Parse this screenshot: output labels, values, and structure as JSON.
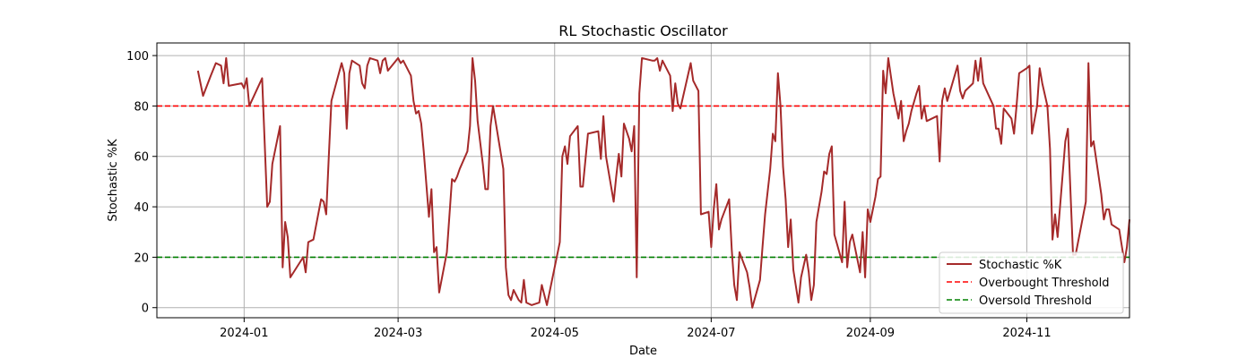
{
  "chart_data": {
    "type": "line",
    "title": "RL Stochastic Oscillator",
    "xlabel": "Date",
    "ylabel": "Stochastic %K",
    "xlim": [
      "2023-11-28",
      "2024-12-11"
    ],
    "ylim": [
      -4,
      105
    ],
    "x_ticks": [
      "2024-01-01",
      "2024-03-01",
      "2024-05-01",
      "2024-07-01",
      "2024-09-01",
      "2024-11-01"
    ],
    "x_tick_labels": [
      "2024-01",
      "2024-03",
      "2024-05",
      "2024-07",
      "2024-09",
      "2024-11"
    ],
    "y_ticks": [
      0,
      20,
      40,
      60,
      80,
      100
    ],
    "grid": true,
    "legend_position": "lower right",
    "series": [
      {
        "name": "Stochastic %K",
        "color": "#a52a2a",
        "points": [
          [
            "2023-12-14",
            94
          ],
          [
            "2023-12-16",
            84
          ],
          [
            "2023-12-19",
            92
          ],
          [
            "2023-12-21",
            97
          ],
          [
            "2023-12-23",
            96
          ],
          [
            "2023-12-24",
            89
          ],
          [
            "2023-12-25",
            99
          ],
          [
            "2023-12-26",
            88
          ],
          [
            "2023-12-31",
            89
          ],
          [
            "2024-01-01",
            87
          ],
          [
            "2024-01-02",
            91
          ],
          [
            "2024-01-03",
            80
          ],
          [
            "2024-01-08",
            91
          ],
          [
            "2024-01-10",
            40
          ],
          [
            "2024-01-11",
            42
          ],
          [
            "2024-01-12",
            57
          ],
          [
            "2024-01-15",
            72
          ],
          [
            "2024-01-16",
            16
          ],
          [
            "2024-01-17",
            34
          ],
          [
            "2024-01-18",
            28
          ],
          [
            "2024-01-19",
            12
          ],
          [
            "2024-01-24",
            20
          ],
          [
            "2024-01-25",
            14
          ],
          [
            "2024-01-26",
            26
          ],
          [
            "2024-01-28",
            27
          ],
          [
            "2024-01-31",
            43
          ],
          [
            "2024-02-01",
            42
          ],
          [
            "2024-02-02",
            37
          ],
          [
            "2024-02-03",
            60
          ],
          [
            "2024-02-04",
            82
          ],
          [
            "2024-02-08",
            97
          ],
          [
            "2024-02-09",
            93
          ],
          [
            "2024-02-10",
            71
          ],
          [
            "2024-02-11",
            93
          ],
          [
            "2024-02-12",
            98
          ],
          [
            "2024-02-15",
            96
          ],
          [
            "2024-02-16",
            89
          ],
          [
            "2024-02-17",
            87
          ],
          [
            "2024-02-18",
            96
          ],
          [
            "2024-02-19",
            99
          ],
          [
            "2024-02-22",
            98
          ],
          [
            "2024-02-23",
            93
          ],
          [
            "2024-02-24",
            98
          ],
          [
            "2024-02-25",
            99
          ],
          [
            "2024-02-26",
            94
          ],
          [
            "2024-03-01",
            99
          ],
          [
            "2024-03-02",
            97
          ],
          [
            "2024-03-03",
            98
          ],
          [
            "2024-03-06",
            92
          ],
          [
            "2024-03-07",
            82
          ],
          [
            "2024-03-08",
            77
          ],
          [
            "2024-03-09",
            78
          ],
          [
            "2024-03-10",
            73
          ],
          [
            "2024-03-11",
            62
          ],
          [
            "2024-03-13",
            36
          ],
          [
            "2024-03-14",
            47
          ],
          [
            "2024-03-15",
            22
          ],
          [
            "2024-03-16",
            24
          ],
          [
            "2024-03-17",
            6
          ],
          [
            "2024-03-20",
            22
          ],
          [
            "2024-03-22",
            51
          ],
          [
            "2024-03-23",
            50
          ],
          [
            "2024-03-24",
            52
          ],
          [
            "2024-03-25",
            55
          ],
          [
            "2024-03-28",
            62
          ],
          [
            "2024-03-29",
            72
          ],
          [
            "2024-03-30",
            99
          ],
          [
            "2024-03-31",
            90
          ],
          [
            "2024-04-01",
            74
          ],
          [
            "2024-04-03",
            57
          ],
          [
            "2024-04-04",
            47
          ],
          [
            "2024-04-05",
            47
          ],
          [
            "2024-04-06",
            72
          ],
          [
            "2024-04-07",
            80
          ],
          [
            "2024-04-11",
            55
          ],
          [
            "2024-04-12",
            16
          ],
          [
            "2024-04-13",
            5
          ],
          [
            "2024-04-14",
            3
          ],
          [
            "2024-04-15",
            7
          ],
          [
            "2024-04-17",
            3
          ],
          [
            "2024-04-18",
            2
          ],
          [
            "2024-04-19",
            11
          ],
          [
            "2024-04-20",
            2
          ],
          [
            "2024-04-22",
            1
          ],
          [
            "2024-04-25",
            2
          ],
          [
            "2024-04-26",
            9
          ],
          [
            "2024-04-28",
            1
          ],
          [
            "2024-05-03",
            26
          ],
          [
            "2024-05-04",
            60
          ],
          [
            "2024-05-05",
            64
          ],
          [
            "2024-05-06",
            57
          ],
          [
            "2024-05-07",
            68
          ],
          [
            "2024-05-10",
            72
          ],
          [
            "2024-05-11",
            48
          ],
          [
            "2024-05-12",
            48
          ],
          [
            "2024-05-14",
            69
          ],
          [
            "2024-05-18",
            70
          ],
          [
            "2024-05-19",
            59
          ],
          [
            "2024-05-20",
            76
          ],
          [
            "2024-05-21",
            60
          ],
          [
            "2024-05-24",
            42
          ],
          [
            "2024-05-25",
            52
          ],
          [
            "2024-05-26",
            61
          ],
          [
            "2024-05-27",
            52
          ],
          [
            "2024-05-28",
            73
          ],
          [
            "2024-05-30",
            67
          ],
          [
            "2024-05-31",
            62
          ],
          [
            "2024-06-01",
            72
          ],
          [
            "2024-06-02",
            12
          ],
          [
            "2024-06-03",
            85
          ],
          [
            "2024-06-04",
            99
          ],
          [
            "2024-06-08",
            98
          ],
          [
            "2024-06-09",
            98
          ],
          [
            "2024-06-10",
            99
          ],
          [
            "2024-06-11",
            94
          ],
          [
            "2024-06-12",
            98
          ],
          [
            "2024-06-15",
            92
          ],
          [
            "2024-06-16",
            78
          ],
          [
            "2024-06-17",
            89
          ],
          [
            "2024-06-18",
            81
          ],
          [
            "2024-06-19",
            79
          ],
          [
            "2024-06-23",
            97
          ],
          [
            "2024-06-24",
            90
          ],
          [
            "2024-06-26",
            86
          ],
          [
            "2024-06-27",
            37
          ],
          [
            "2024-06-30",
            38
          ],
          [
            "2024-07-01",
            24
          ],
          [
            "2024-07-02",
            39
          ],
          [
            "2024-07-03",
            49
          ],
          [
            "2024-07-04",
            31
          ],
          [
            "2024-07-05",
            35
          ],
          [
            "2024-07-08",
            43
          ],
          [
            "2024-07-09",
            23
          ],
          [
            "2024-07-10",
            9
          ],
          [
            "2024-07-11",
            3
          ],
          [
            "2024-07-12",
            22
          ],
          [
            "2024-07-15",
            14
          ],
          [
            "2024-07-16",
            8
          ],
          [
            "2024-07-17",
            0
          ],
          [
            "2024-07-20",
            11
          ],
          [
            "2024-07-21",
            24
          ],
          [
            "2024-07-22",
            37
          ],
          [
            "2024-07-24",
            55
          ],
          [
            "2024-07-25",
            69
          ],
          [
            "2024-07-26",
            66
          ],
          [
            "2024-07-27",
            93
          ],
          [
            "2024-07-28",
            80
          ],
          [
            "2024-07-29",
            56
          ],
          [
            "2024-07-30",
            43
          ],
          [
            "2024-07-31",
            24
          ],
          [
            "2024-08-01",
            35
          ],
          [
            "2024-08-02",
            15
          ],
          [
            "2024-08-04",
            2
          ],
          [
            "2024-08-05",
            12
          ],
          [
            "2024-08-07",
            21
          ],
          [
            "2024-08-08",
            14
          ],
          [
            "2024-08-09",
            3
          ],
          [
            "2024-08-10",
            9
          ],
          [
            "2024-08-11",
            34
          ],
          [
            "2024-08-13",
            46
          ],
          [
            "2024-08-14",
            54
          ],
          [
            "2024-08-15",
            53
          ],
          [
            "2024-08-16",
            61
          ],
          [
            "2024-08-17",
            64
          ],
          [
            "2024-08-18",
            29
          ],
          [
            "2024-08-21",
            18
          ],
          [
            "2024-08-22",
            42
          ],
          [
            "2024-08-23",
            16
          ],
          [
            "2024-08-24",
            26
          ],
          [
            "2024-08-25",
            29
          ],
          [
            "2024-08-28",
            14
          ],
          [
            "2024-08-29",
            30
          ],
          [
            "2024-08-30",
            12
          ],
          [
            "2024-08-31",
            39
          ],
          [
            "2024-09-01",
            34
          ],
          [
            "2024-09-03",
            44
          ],
          [
            "2024-09-04",
            51
          ],
          [
            "2024-09-05",
            52
          ],
          [
            "2024-09-06",
            94
          ],
          [
            "2024-09-07",
            85
          ],
          [
            "2024-09-08",
            99
          ],
          [
            "2024-09-10",
            85
          ],
          [
            "2024-09-12",
            75
          ],
          [
            "2024-09-13",
            82
          ],
          [
            "2024-09-14",
            66
          ],
          [
            "2024-09-15",
            70
          ],
          [
            "2024-09-16",
            73
          ],
          [
            "2024-09-17",
            78
          ],
          [
            "2024-09-19",
            85
          ],
          [
            "2024-09-20",
            88
          ],
          [
            "2024-09-21",
            75
          ],
          [
            "2024-09-22",
            80
          ],
          [
            "2024-09-23",
            74
          ],
          [
            "2024-09-27",
            76
          ],
          [
            "2024-09-28",
            58
          ],
          [
            "2024-09-29",
            82
          ],
          [
            "2024-09-30",
            87
          ],
          [
            "2024-10-01",
            82
          ],
          [
            "2024-10-05",
            96
          ],
          [
            "2024-10-06",
            86
          ],
          [
            "2024-10-07",
            83
          ],
          [
            "2024-10-08",
            86
          ],
          [
            "2024-10-11",
            89
          ],
          [
            "2024-10-12",
            98
          ],
          [
            "2024-10-13",
            90
          ],
          [
            "2024-10-14",
            99
          ],
          [
            "2024-10-15",
            89
          ],
          [
            "2024-10-19",
            80
          ],
          [
            "2024-10-20",
            71
          ],
          [
            "2024-10-21",
            71
          ],
          [
            "2024-10-22",
            65
          ],
          [
            "2024-10-23",
            79
          ],
          [
            "2024-10-26",
            75
          ],
          [
            "2024-10-27",
            69
          ],
          [
            "2024-10-28",
            80
          ],
          [
            "2024-10-29",
            93
          ],
          [
            "2024-11-01",
            95
          ],
          [
            "2024-11-02",
            96
          ],
          [
            "2024-11-03",
            69
          ],
          [
            "2024-11-05",
            80
          ],
          [
            "2024-11-06",
            95
          ],
          [
            "2024-11-07",
            89
          ],
          [
            "2024-11-09",
            80
          ],
          [
            "2024-11-10",
            63
          ],
          [
            "2024-11-11",
            27
          ],
          [
            "2024-11-12",
            37
          ],
          [
            "2024-11-13",
            28
          ],
          [
            "2024-11-16",
            66
          ],
          [
            "2024-11-17",
            71
          ],
          [
            "2024-11-19",
            21
          ],
          [
            "2024-11-20",
            21
          ],
          [
            "2024-11-24",
            42
          ],
          [
            "2024-11-25",
            97
          ],
          [
            "2024-11-26",
            64
          ],
          [
            "2024-11-27",
            66
          ],
          [
            "2024-11-30",
            45
          ],
          [
            "2024-12-01",
            35
          ],
          [
            "2024-12-02",
            39
          ],
          [
            "2024-12-03",
            39
          ],
          [
            "2024-12-04",
            33
          ],
          [
            "2024-12-07",
            31
          ],
          [
            "2024-12-09",
            18
          ],
          [
            "2024-12-10",
            24
          ],
          [
            "2024-12-11",
            35
          ]
        ]
      },
      {
        "name": "Overbought Threshold",
        "color": "#ff0000",
        "style": "dashed",
        "y": 80
      },
      {
        "name": "Oversold Threshold",
        "color": "#008000",
        "style": "dashed",
        "y": 20
      }
    ]
  }
}
